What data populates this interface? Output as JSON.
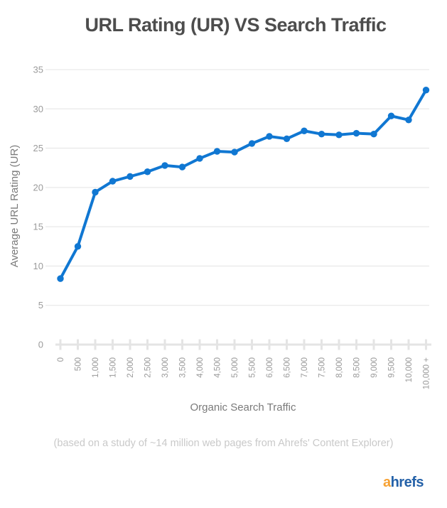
{
  "page": {
    "title": "URL Rating (UR) VS Search Traffic",
    "footer_note": "(based on a study of ~14 million web pages from Ahrefs' Content Explorer)",
    "logo": {
      "prefix": "a",
      "suffix": "hrefs"
    }
  },
  "chart_data": {
    "type": "line",
    "title": "URL Rating (UR) VS Search Traffic",
    "xlabel": "Organic Search Traffic",
    "ylabel": "Average URL Rating (UR)",
    "categories": [
      "0",
      "500",
      "1,000",
      "1,500",
      "2,000",
      "2,500",
      "3,000",
      "3,500",
      "4,000",
      "4,500",
      "5,000",
      "5,500",
      "6,000",
      "6,500",
      "7,000",
      "7,500",
      "8,000",
      "8,500",
      "9,000",
      "9,500",
      "10,000",
      "10,000 +"
    ],
    "values": [
      8.4,
      12.5,
      19.4,
      20.8,
      21.4,
      22.0,
      22.8,
      22.6,
      23.7,
      24.6,
      24.5,
      25.6,
      26.5,
      26.2,
      27.2,
      26.8,
      26.7,
      26.9,
      26.8,
      29.1,
      28.6,
      32.4
    ],
    "series_name": "Average URL Rating (UR)",
    "ylim": [
      0,
      35
    ],
    "yticks": [
      0,
      5,
      10,
      15,
      20,
      25,
      30,
      35
    ],
    "grid": "horizontal",
    "legend": "none",
    "colors": {
      "line": "#1077d2",
      "marker": "#1077d2",
      "grid": "#e9e9e9",
      "axis": "#e4e4e4",
      "tick_label": "#9b9b9b",
      "axis_title": "#7a7a7a",
      "title": "#4d4d4d",
      "footer": "#c9c9c9",
      "logo_a": "#f7a234",
      "logo_hrefs": "#2461a8"
    }
  }
}
